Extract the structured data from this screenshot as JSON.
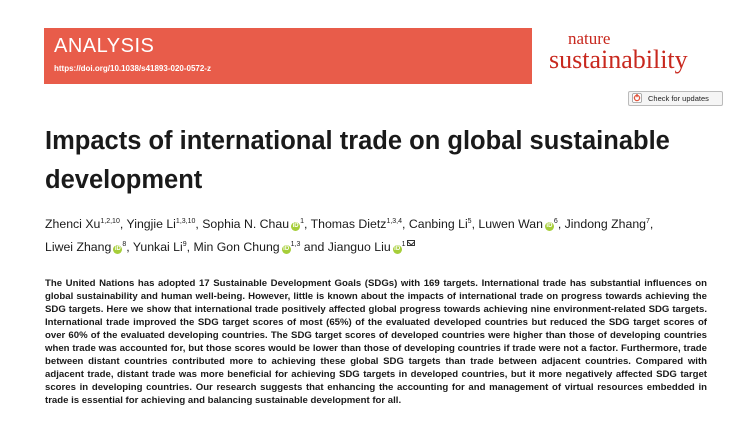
{
  "banner": {
    "label": "ANALYSIS",
    "doi": "https://doi.org/10.1038/s41893-020-0572-z",
    "color": "#e85c4a"
  },
  "journal": {
    "line1": "nature",
    "line2": "sustainability",
    "color": "#c8281e"
  },
  "check_updates": {
    "label": "Check for updates",
    "icon": "check-for-updates-icon"
  },
  "article": {
    "title": "Impacts of international trade on global sustainable development",
    "authors": [
      {
        "name": "Zhenci Xu",
        "sup": "1,2,10",
        "orcid": false,
        "sep": ", "
      },
      {
        "name": "Yingjie Li",
        "sup": "1,3,10",
        "orcid": false,
        "sep": ", "
      },
      {
        "name": "Sophia N. Chau",
        "sup": "1",
        "orcid": true,
        "sep": ", "
      },
      {
        "name": "Thomas Dietz",
        "sup": "1,3,4",
        "orcid": false,
        "sep": ", "
      },
      {
        "name": "Canbing Li",
        "sup": "5",
        "orcid": false,
        "sep": ", "
      },
      {
        "name": "Luwen Wan",
        "sup": "6",
        "orcid": true,
        "sep": ", "
      },
      {
        "name": "Jindong Zhang",
        "sup": "7",
        "orcid": false,
        "sep": ", "
      },
      {
        "name": "Liwei Zhang",
        "sup": "8",
        "orcid": true,
        "sep": ", "
      },
      {
        "name": "Yunkai Li",
        "sup": "9",
        "orcid": false,
        "sep": ", "
      },
      {
        "name": "Min Gon Chung",
        "sup": "1,3",
        "orcid": true,
        "sep": " and "
      },
      {
        "name": "Jianguo Liu",
        "sup": "1",
        "orcid": true,
        "sep": "",
        "corresponding": true
      }
    ],
    "orcid_label": "iD",
    "abstract": "The United Nations has adopted 17 Sustainable Development Goals (SDGs) with 169 targets. International trade has substantial influences on global sustainability and human well-being. However, little is known about the impacts of international trade on progress towards achieving the SDG targets. Here we show that international trade positively affected global progress towards achieving nine environment-related SDG targets. International trade improved the SDG target scores of most (65%) of the evaluated developed countries but reduced the SDG target scores of over 60% of the evaluated developing countries. The SDG target scores of developed countries were higher than those of developing countries when trade was accounted for, but those scores would be lower than those of developing countries if trade were not a factor. Furthermore, trade between distant countries contributed more to achieving these global SDG targets than trade between adjacent countries. Compared with adjacent trade, distant trade was more beneficial for achieving SDG targets in developed countries, but it more negatively affected SDG target scores in developing countries. Our research suggests that enhancing the accounting for and management of virtual resources embedded in trade is essential for achieving and balancing sustainable development for all."
  }
}
